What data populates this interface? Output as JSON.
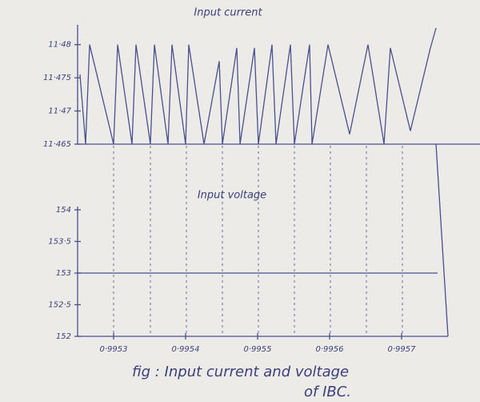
{
  "chart_data": [
    {
      "type": "line",
      "title": "Input current",
      "x": [
        0.9952533,
        0.9952611,
        0.9952667,
        0.9953,
        0.9953056,
        0.9953256,
        0.9953311,
        0.9953511,
        0.9953567,
        0.9953756,
        0.9953811,
        0.9954,
        0.9954044,
        0.9954256,
        0.9954467,
        0.9954511,
        0.9954711,
        0.9954756,
        0.9954956,
        0.9955011,
        0.99552,
        0.9955256,
        0.9955456,
        0.9955511,
        0.9955722,
        0.9955756,
        0.9955978,
        0.9956278,
        0.9956533,
        0.9956756,
        0.9956844,
        0.9957122,
        0.99574,
        0.9957478
      ],
      "series": [
        {
          "color": "#4a4f8f",
          "values": [
            11.4755,
            11.465,
            11.48,
            11.465,
            11.48,
            11.465,
            11.48,
            11.465,
            11.48,
            11.465,
            11.48,
            11.465,
            11.48,
            11.465,
            11.4775,
            11.465,
            11.4795,
            11.465,
            11.4795,
            11.465,
            11.48,
            11.465,
            11.48,
            11.465,
            11.48,
            11.465,
            11.48,
            11.4665,
            11.48,
            11.465,
            11.4795,
            11.467,
            11.4795,
            11.4825
          ]
        }
      ],
      "xlim": [
        0.99525,
        0.99575
      ],
      "ylim": [
        11.465,
        11.4825
      ],
      "yticks": [
        {
          "value": 11.465,
          "label": "11·465"
        },
        {
          "value": 11.47,
          "label": "11·47"
        },
        {
          "value": 11.475,
          "label": "11·475"
        },
        {
          "value": 11.48,
          "label": "11·48"
        }
      ],
      "grid": false
    },
    {
      "type": "line",
      "title": "Input voltage",
      "x": [
        0.99525,
        0.99575
      ],
      "series": [
        {
          "color": "#4a4f8f",
          "values": [
            153,
            153
          ]
        }
      ],
      "xlim": [
        0.99525,
        0.99575
      ],
      "ylim": [
        152,
        154
      ],
      "xticks": [
        {
          "value": 0.9953,
          "label": "0·9953"
        },
        {
          "value": 0.9954,
          "label": "0·9954"
        },
        {
          "value": 0.9955,
          "label": "0·9955"
        },
        {
          "value": 0.9956,
          "label": "0·9956"
        },
        {
          "value": 0.9957,
          "label": "0·9957"
        }
      ],
      "yticks": [
        152,
        {
          "value": 152.5,
          "label": "152·5"
        },
        153,
        {
          "value": 153.5,
          "label": "153·5"
        },
        154
      ],
      "grid": false
    }
  ],
  "caption": [
    "fig :  Input  current and  voltage",
    "of  IBC."
  ]
}
